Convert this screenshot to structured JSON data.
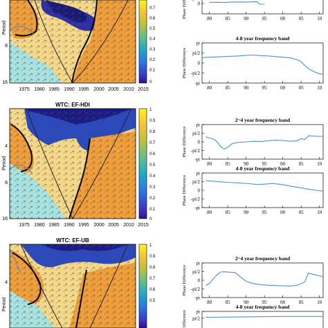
{
  "colors": {
    "deep_blue": "#1f1d8c",
    "blue": "#2d5fd6",
    "light_blue": "#6fb6ea",
    "cyan": "#9be3e1",
    "yellow": "#f4d77e",
    "orange": "#eda33c",
    "line_blue": "#4a90cf",
    "coi_gray": "#8a8a8a"
  },
  "chart_data": [
    {
      "type": "heatmap",
      "title": "",
      "xlabel": "",
      "ylabel": "Period",
      "x_ticks": [
        "1975",
        "1980",
        "1985",
        "1990",
        "1995",
        "2000",
        "2005",
        "2010",
        "2015"
      ],
      "y_ticks": [
        "4",
        "8",
        "16"
      ],
      "colorbar_ticks": [
        "0.7",
        "0.6",
        "0.5",
        "0.4",
        "0.3",
        "0.2",
        "0.1",
        "0"
      ]
    },
    {
      "type": "line",
      "title": "",
      "ylabel": "Phase Difference",
      "y_ticks": [
        "pi/2",
        "0"
      ],
      "x_ticks": [
        "80",
        "85",
        "90",
        "95",
        "00",
        "05",
        "10"
      ],
      "x": [
        80,
        82,
        84,
        86,
        88,
        90,
        92,
        93,
        93.5,
        94,
        95
      ],
      "values": [
        0.3,
        0.35,
        0.3,
        0.4,
        0.45,
        0.4,
        0.5,
        0.55,
        -0.1,
        -0.2,
        -0.2
      ]
    },
    {
      "type": "line",
      "title": "4-8 year frequency band",
      "ylabel": "Phase Difference",
      "y_ticks": [
        "pi",
        "pi/2",
        "0",
        "-pi/2",
        "-pi"
      ],
      "x_ticks": [
        "80",
        "85",
        "90",
        "95",
        "00",
        "05",
        "10"
      ],
      "x": [
        78,
        80,
        82,
        84,
        86,
        88,
        90,
        92,
        94,
        96,
        98,
        100,
        102,
        104,
        105,
        106,
        107,
        108,
        109,
        110,
        111
      ],
      "values": [
        0.85,
        0.9,
        0.95,
        1.0,
        1.05,
        1.1,
        1.2,
        1.25,
        1.15,
        1.1,
        1.0,
        0.9,
        0.8,
        0.5,
        0.2,
        -0.4,
        -0.9,
        -1.2,
        -1.5,
        -1.7,
        -1.75
      ]
    },
    {
      "type": "heatmap",
      "title": "WTC: EF-HDI",
      "xlabel": "",
      "ylabel": "Period",
      "x_ticks": [
        "1975",
        "1980",
        "1985",
        "1990",
        "1995",
        "2000",
        "2005",
        "2010",
        "2015"
      ],
      "y_ticks": [
        "4",
        "8",
        "16"
      ],
      "colorbar_ticks": [
        "1",
        "0.9",
        "0.8",
        "0.7",
        "0.6",
        "0.5",
        "0.4",
        "0.3",
        "0.2",
        "0.1",
        "0"
      ]
    },
    {
      "type": "line",
      "title": "2~4 year frequency band",
      "ylabel": "Phase Difference",
      "y_ticks": [
        "pi",
        "pi/2",
        "0",
        "-pi/2",
        "-pi"
      ],
      "x_ticks": [
        "80",
        "85",
        "90",
        "95",
        "00",
        "05",
        "10"
      ],
      "x": [
        79,
        80,
        81,
        82,
        83,
        84,
        85,
        86,
        87,
        88,
        90,
        92,
        94,
        96,
        98,
        100,
        102,
        104,
        105,
        106,
        107,
        108,
        109,
        110,
        111
      ],
      "values": [
        0.9,
        0.7,
        0.5,
        0.1,
        -0.8,
        -1.3,
        -1.0,
        -0.4,
        -0.2,
        -0.1,
        0,
        0.1,
        0.05,
        0.2,
        0.3,
        0.25,
        0.1,
        0.2,
        0.6,
        0.4,
        1.1,
        1.05,
        1.0,
        1.0,
        1.0
      ]
    },
    {
      "type": "line",
      "title": "4-8 year frequency band",
      "ylabel": "Phase Difference",
      "y_ticks": [
        "pi",
        "pi/2",
        "0",
        "-pi/2",
        "-pi"
      ],
      "x_ticks": [
        "80",
        "85",
        "90",
        "95",
        "00",
        "05",
        "10"
      ],
      "x": [
        79,
        82,
        85,
        88,
        91,
        93,
        95,
        97,
        99,
        101,
        103,
        105,
        107,
        109,
        111
      ],
      "values": [
        1.75,
        1.6,
        1.45,
        1.35,
        1.2,
        1.05,
        1.1,
        1.25,
        1.1,
        0.9,
        0.65,
        0.45,
        0.2,
        0.0,
        -0.15
      ]
    },
    {
      "type": "heatmap",
      "title": "WTC: EF-UB",
      "xlabel": "",
      "ylabel": "Period",
      "x_ticks": [],
      "y_ticks": [
        "4"
      ],
      "colorbar_ticks": [
        "1",
        "0.9",
        "0.8",
        "0.7",
        "0.6",
        "0.5"
      ]
    },
    {
      "type": "line",
      "title": "2~4 year frequency band",
      "ylabel": "Phase Difference",
      "y_ticks": [
        "pi",
        "pi/2",
        "0",
        "-pi/2",
        "-pi"
      ],
      "x_ticks": [
        "80",
        "85",
        "90",
        "95",
        "00",
        "05",
        "10"
      ],
      "x": [
        79,
        80,
        81,
        82,
        83,
        84,
        87,
        90,
        92,
        94,
        96,
        98,
        100,
        102,
        104,
        106,
        107,
        108,
        110,
        111
      ],
      "values": [
        -0.9,
        -0.6,
        0.2,
        0.9,
        1.5,
        1.55,
        1.4,
        -0.2,
        -0.6,
        -0.8,
        -0.9,
        -0.95,
        -1.0,
        -1.05,
        -0.9,
        -0.3,
        1.3,
        1.1,
        0.8,
        0.6
      ]
    },
    {
      "type": "line",
      "title": "4-8 year frequency band",
      "ylabel": "Phase Difference",
      "y_ticks": [
        "pi",
        "pi/2"
      ],
      "x_ticks": [],
      "x": [
        79,
        85,
        90,
        95,
        100,
        105,
        110,
        111
      ],
      "values": [
        1.8,
        1.85,
        1.9,
        1.95,
        2.0,
        2.0,
        2.0,
        2.0
      ]
    }
  ]
}
